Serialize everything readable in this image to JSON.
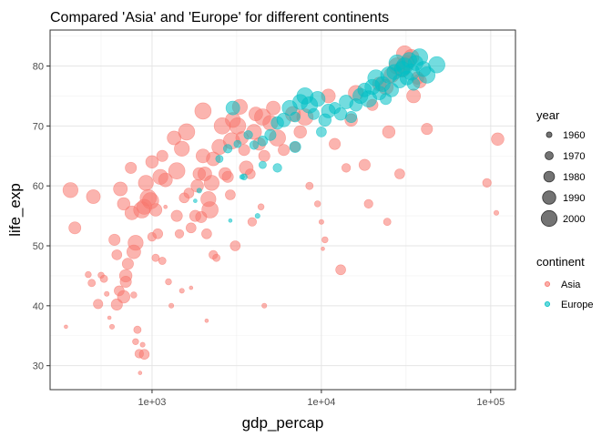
{
  "chart_data": {
    "type": "scatter",
    "title": "Compared 'Asia' and 'Europe' for different continents",
    "xlabel": "gdp_percap",
    "ylabel": "life_exp",
    "x_scale": "log10",
    "xlim": [
      250,
      140000
    ],
    "ylim": [
      26,
      86
    ],
    "x_ticks": [
      1000,
      10000,
      100000
    ],
    "x_tick_labels": [
      "1e+03",
      "1e+04",
      "1e+05"
    ],
    "y_ticks": [
      30,
      40,
      50,
      60,
      70,
      80
    ],
    "y_tick_labels": [
      "30",
      "40",
      "50",
      "60",
      "70",
      "80"
    ],
    "grid": true,
    "legend_position": "right",
    "size_legend": {
      "title": "year",
      "entries": [
        {
          "label": "1960",
          "year": 1960
        },
        {
          "label": "1970",
          "year": 1970
        },
        {
          "label": "1980",
          "year": 1980
        },
        {
          "label": "1990",
          "year": 1990
        },
        {
          "label": "2000",
          "year": 2000
        }
      ]
    },
    "color_legend": {
      "title": "continent",
      "entries": [
        {
          "label": "Asia",
          "color": "#F8766D"
        },
        {
          "label": "Europe",
          "color": "#00BFC4"
        }
      ]
    },
    "series": [
      {
        "name": "Asia",
        "color": "#F8766D",
        "points": [
          [
            310,
            36.5,
            1952
          ],
          [
            330,
            59.3,
            1997
          ],
          [
            350,
            53,
            1985
          ],
          [
            420,
            45.2,
            1962
          ],
          [
            440,
            43.8,
            1967
          ],
          [
            450,
            58.2,
            1992
          ],
          [
            480,
            40.3,
            1975
          ],
          [
            500,
            45.1,
            1962
          ],
          [
            520,
            44.5,
            1967
          ],
          [
            540,
            42.0,
            1957
          ],
          [
            560,
            38.0,
            1952
          ],
          [
            580,
            36.5,
            1957
          ],
          [
            600,
            51.0,
            1982
          ],
          [
            620,
            48.5,
            1977
          ],
          [
            650,
            59.5,
            1992
          ],
          [
            680,
            57.0,
            1987
          ],
          [
            620,
            40.2,
            1982
          ],
          [
            640,
            42.5,
            1977
          ],
          [
            700,
            45.0,
            1987
          ],
          [
            680,
            41.5,
            1987
          ],
          [
            700,
            44.0,
            1982
          ],
          [
            720,
            47.0,
            1982
          ],
          [
            750,
            63.0,
            1982
          ],
          [
            760,
            55.5,
            1992
          ],
          [
            780,
            49.0,
            1992
          ],
          [
            800,
            50.5,
            1997
          ],
          [
            780,
            41.8,
            1962
          ],
          [
            800,
            34.0,
            1962
          ],
          [
            820,
            36.0,
            1967
          ],
          [
            840,
            32.0,
            1972
          ],
          [
            850,
            28.8,
            1952
          ],
          [
            880,
            33.5,
            1957
          ],
          [
            900,
            31.9,
            1977
          ],
          [
            870,
            56.0,
            2002
          ],
          [
            900,
            56.5,
            1997
          ],
          [
            920,
            60.5,
            1997
          ],
          [
            950,
            58.0,
            2002
          ],
          [
            980,
            57.5,
            2002
          ],
          [
            1000,
            64.0,
            1987
          ],
          [
            1050,
            56.0,
            1987
          ],
          [
            1000,
            51.5,
            1972
          ],
          [
            1050,
            48.0,
            1967
          ],
          [
            1080,
            52.0,
            1977
          ],
          [
            1120,
            61.5,
            1997
          ],
          [
            1150,
            65.0,
            1982
          ],
          [
            1200,
            61.0,
            1992
          ],
          [
            1150,
            47.5,
            1967
          ],
          [
            1200,
            56.5,
            1952
          ],
          [
            1250,
            44.0,
            1962
          ],
          [
            1300,
            40.0,
            1957
          ],
          [
            1350,
            68.0,
            1992
          ],
          [
            1400,
            55.0,
            1982
          ],
          [
            1400,
            62.5,
            2002
          ],
          [
            1450,
            52.0,
            1972
          ],
          [
            1500,
            66.2,
            1997
          ],
          [
            1550,
            58.0,
            1977
          ],
          [
            1500,
            42.5,
            1957
          ],
          [
            1600,
            69.0,
            2002
          ],
          [
            1650,
            58.8,
            1977
          ],
          [
            1700,
            53.0,
            1977
          ],
          [
            1700,
            43.0,
            1952
          ],
          [
            1800,
            55.0,
            1982
          ],
          [
            1850,
            60.0,
            1987
          ],
          [
            1900,
            62.0,
            1987
          ],
          [
            1950,
            54.8,
            1982
          ],
          [
            2000,
            65.0,
            1992
          ],
          [
            2000,
            72.5,
            2002
          ],
          [
            2050,
            62.0,
            1992
          ],
          [
            2100,
            52.0,
            1977
          ],
          [
            2100,
            37.5,
            1952
          ],
          [
            2150,
            57.8,
            1997
          ],
          [
            2200,
            56.0,
            2002
          ],
          [
            2250,
            60.5,
            1997
          ],
          [
            2300,
            64.5,
            1992
          ],
          [
            2300,
            48.5,
            1972
          ],
          [
            2400,
            48.0,
            1967
          ],
          [
            2500,
            66.5,
            1997
          ],
          [
            2600,
            70.0,
            2002
          ],
          [
            2700,
            62.0,
            1987
          ],
          [
            2800,
            61.5,
            1982
          ],
          [
            2900,
            58.5,
            1977
          ],
          [
            2950,
            67.5,
            2002
          ],
          [
            3000,
            71.0,
            1997
          ],
          [
            3100,
            50.0,
            1977
          ],
          [
            3200,
            70.0,
            2002
          ],
          [
            3300,
            73.2,
            1997
          ],
          [
            3400,
            68.0,
            1987
          ],
          [
            3500,
            66.0,
            1982
          ],
          [
            3600,
            63.0,
            1992
          ],
          [
            3800,
            62.0,
            1977
          ],
          [
            3900,
            54.0,
            1972
          ],
          [
            4000,
            69.0,
            1997
          ],
          [
            4100,
            72.0,
            1992
          ],
          [
            4300,
            67.0,
            1987
          ],
          [
            4400,
            56.5,
            1962
          ],
          [
            4500,
            71.5,
            2002
          ],
          [
            4600,
            65.0,
            1982
          ],
          [
            5000,
            70.5,
            1997
          ],
          [
            5200,
            73.0,
            1992
          ],
          [
            5500,
            68.0,
            2002
          ],
          [
            4600,
            40.0,
            1957
          ],
          [
            6000,
            66.0,
            1982
          ],
          [
            6800,
            72.0,
            1997
          ],
          [
            7000,
            66.5,
            1977
          ],
          [
            7500,
            69.0,
            1987
          ],
          [
            8000,
            71.5,
            2002
          ],
          [
            8500,
            60.0,
            1967
          ],
          [
            9500,
            57.0,
            1962
          ],
          [
            10000,
            54.0,
            1957
          ],
          [
            10500,
            51.0,
            1962
          ],
          [
            10200,
            49.5,
            1952
          ],
          [
            11000,
            75.0,
            1992
          ],
          [
            12000,
            67.0,
            1982
          ],
          [
            14000,
            63.0,
            1972
          ],
          [
            13000,
            46.0,
            1977
          ],
          [
            15000,
            71.0,
            1987
          ],
          [
            16000,
            75.5,
            1997
          ],
          [
            18000,
            63.5,
            1982
          ],
          [
            19000,
            57.0,
            1972
          ],
          [
            20000,
            73.5,
            1982
          ],
          [
            22000,
            77.0,
            1992
          ],
          [
            24000,
            76.5,
            1997
          ],
          [
            24500,
            54.0,
            1967
          ],
          [
            25000,
            69.0,
            1987
          ],
          [
            26000,
            78.5,
            1997
          ],
          [
            28000,
            80.0,
            2002
          ],
          [
            30000,
            79.5,
            2002
          ],
          [
            31000,
            82.0,
            2002
          ],
          [
            32000,
            80.5,
            1997
          ],
          [
            34000,
            81.5,
            1997
          ],
          [
            35000,
            75.0,
            1992
          ],
          [
            37000,
            78.0,
            1987
          ],
          [
            38000,
            77.5,
            1992
          ],
          [
            29000,
            62.0,
            1977
          ],
          [
            42000,
            69.5,
            1982
          ],
          [
            95000,
            60.5,
            1972
          ],
          [
            108000,
            55.5,
            1957
          ],
          [
            110000,
            67.8,
            1987
          ]
        ]
      },
      {
        "name": "Europe",
        "color": "#00BFC4",
        "points": [
          [
            1800,
            57.5,
            1952
          ],
          [
            1900,
            59.2,
            1957
          ],
          [
            2500,
            64.5,
            1967
          ],
          [
            2800,
            66.2,
            1972
          ],
          [
            2900,
            54.2,
            1952
          ],
          [
            3000,
            73.0,
            1992
          ],
          [
            3200,
            67.0,
            1967
          ],
          [
            3400,
            61.5,
            1957
          ],
          [
            3500,
            61.5,
            1962
          ],
          [
            3700,
            68.5,
            1972
          ],
          [
            4000,
            66.8,
            1972
          ],
          [
            4500,
            63.5,
            1967
          ],
          [
            4200,
            55.0,
            1957
          ],
          [
            4500,
            67.5,
            1977
          ],
          [
            5000,
            68.5,
            1982
          ],
          [
            5500,
            63.0,
            1972
          ],
          [
            5500,
            70.5,
            1987
          ],
          [
            6000,
            71.0,
            1992
          ],
          [
            6500,
            73.0,
            1997
          ],
          [
            7000,
            71.5,
            1977
          ],
          [
            7000,
            66.5,
            1982
          ],
          [
            7500,
            74.0,
            1997
          ],
          [
            8000,
            75.0,
            2002
          ],
          [
            8500,
            73.5,
            2002
          ],
          [
            9000,
            72.0,
            1982
          ],
          [
            9500,
            74.5,
            1997
          ],
          [
            10000,
            69.0,
            1977
          ],
          [
            10500,
            71.0,
            1987
          ],
          [
            11000,
            72.5,
            1992
          ],
          [
            12000,
            73.0,
            1982
          ],
          [
            13000,
            72.0,
            1987
          ],
          [
            14000,
            74.0,
            1992
          ],
          [
            15000,
            71.5,
            1982
          ],
          [
            16000,
            73.5,
            1987
          ],
          [
            17000,
            75.0,
            1997
          ],
          [
            18000,
            76.0,
            1992
          ],
          [
            19000,
            74.5,
            2002
          ],
          [
            20000,
            76.5,
            1997
          ],
          [
            21000,
            78.0,
            2002
          ],
          [
            22000,
            75.5,
            1992
          ],
          [
            23000,
            77.0,
            1997
          ],
          [
            24000,
            74.5,
            1982
          ],
          [
            25000,
            78.5,
            2002
          ],
          [
            26000,
            76.0,
            1992
          ],
          [
            27000,
            79.0,
            1997
          ],
          [
            28000,
            80.5,
            2002
          ],
          [
            29000,
            77.5,
            1992
          ],
          [
            30000,
            79.5,
            1997
          ],
          [
            31000,
            80.0,
            2002
          ],
          [
            32000,
            78.0,
            1992
          ],
          [
            33000,
            81.0,
            1997
          ],
          [
            34000,
            79.0,
            2002
          ],
          [
            35000,
            77.0,
            1987
          ],
          [
            36000,
            80.5,
            1997
          ],
          [
            38000,
            81.5,
            2002
          ],
          [
            40000,
            79.5,
            1997
          ],
          [
            42000,
            78.5,
            2002
          ],
          [
            48000,
            80.2,
            2002
          ]
        ]
      }
    ]
  }
}
